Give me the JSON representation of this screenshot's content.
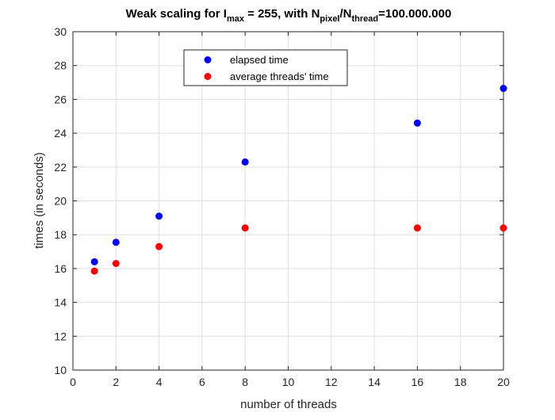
{
  "chart_data": {
    "type": "scatter",
    "title": {
      "parts": [
        {
          "text": "Weak scaling for I",
          "sub": false
        },
        {
          "text": "max",
          "sub": true
        },
        {
          "text": " = 255, with N",
          "sub": false
        },
        {
          "text": "pixel",
          "sub": true
        },
        {
          "text": "/N",
          "sub": false
        },
        {
          "text": "thread",
          "sub": true
        },
        {
          "text": "=100.000.000",
          "sub": false
        }
      ]
    },
    "xlabel": "number of threads",
    "ylabel": "times (in seconds)",
    "xlim": [
      0,
      20
    ],
    "ylim": [
      10,
      30
    ],
    "xticks": [
      0,
      2,
      4,
      6,
      8,
      10,
      12,
      14,
      16,
      18,
      20
    ],
    "yticks": [
      10,
      12,
      14,
      16,
      18,
      20,
      22,
      24,
      26,
      28,
      30
    ],
    "grid": true,
    "legend_position": "top-center",
    "series": [
      {
        "name": "elapsed time",
        "color": "#0000ff",
        "x": [
          1,
          2,
          4,
          8,
          16,
          20
        ],
        "y": [
          16.4,
          17.55,
          19.1,
          22.3,
          24.6,
          26.65
        ]
      },
      {
        "name": "average threads' time",
        "color": "#ff0000",
        "x": [
          1,
          2,
          4,
          8,
          16,
          20
        ],
        "y": [
          15.85,
          16.3,
          17.3,
          18.4,
          18.4,
          18.4
        ]
      }
    ]
  }
}
